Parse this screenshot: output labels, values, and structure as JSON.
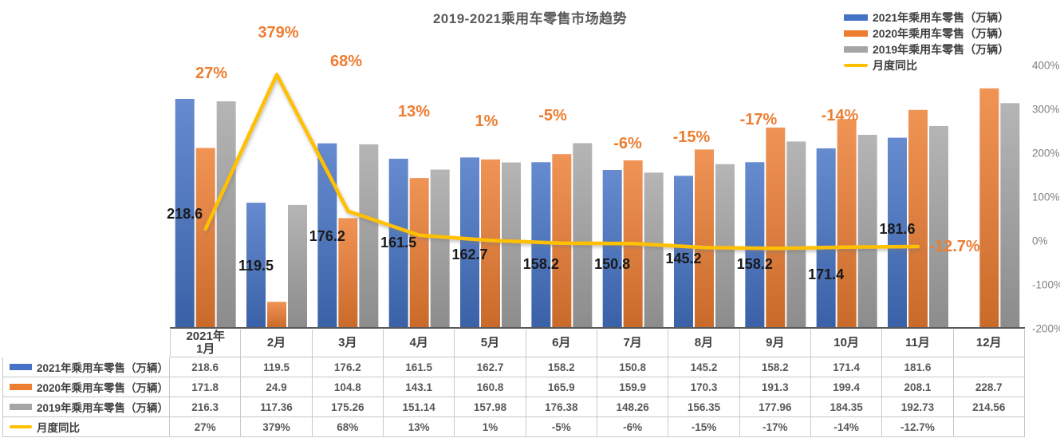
{
  "title": "2019-2021乘用车零售市场趋势",
  "colors": {
    "blue_2021": "#4472C4",
    "orange_2020": "#ED7D31",
    "gray_2019": "#A5A5A5",
    "line_yoy": "#FFC000",
    "axis_line": "#595959",
    "tick_text": "#808080",
    "pct_label": "#ED7D31",
    "value_label": "#1a1a1a"
  },
  "legend": [
    {
      "label": "2021年乘用车零售（万辆）",
      "type": "bar",
      "color": "#4472C4"
    },
    {
      "label": "2020年乘用车零售（万辆）",
      "type": "bar",
      "color": "#ED7D31"
    },
    {
      "label": "2019年乘用车零售（万辆）",
      "type": "bar",
      "color": "#A5A5A5"
    },
    {
      "label": "月度同比",
      "type": "line",
      "color": "#FFC000"
    }
  ],
  "chart_data": {
    "type": "bar+line",
    "title": "2019-2021乘用车零售市场趋势",
    "categories": [
      "2021年1月",
      "2月",
      "3月",
      "4月",
      "5月",
      "6月",
      "7月",
      "8月",
      "9月",
      "10月",
      "11月",
      "12月"
    ],
    "series": [
      {
        "name": "2021年乘用车零售（万辆）",
        "type": "bar",
        "color": "#4472C4",
        "values": [
          218.6,
          119.5,
          176.2,
          161.5,
          162.7,
          158.2,
          150.8,
          145.2,
          158.2,
          171.4,
          181.6,
          null
        ]
      },
      {
        "name": "2020年乘用车零售（万辆）",
        "type": "bar",
        "color": "#ED7D31",
        "values": [
          171.8,
          24.9,
          104.8,
          143.1,
          160.8,
          165.9,
          159.9,
          170.3,
          191.3,
          199.4,
          208.1,
          228.7
        ]
      },
      {
        "name": "2019年乘用车零售（万辆）",
        "type": "bar",
        "color": "#A5A5A5",
        "values": [
          216.3,
          117.36,
          175.26,
          151.14,
          157.98,
          176.38,
          148.26,
          156.35,
          177.96,
          184.35,
          192.73,
          214.56
        ]
      },
      {
        "name": "月度同比",
        "type": "line",
        "color": "#FFC000",
        "axis": "right-percent",
        "values": [
          27,
          379,
          68,
          13,
          1,
          -5,
          -6,
          -15,
          -17,
          -14,
          -12.7,
          null
        ]
      }
    ],
    "bar_value_labels": [
      "218.6",
      "119.5",
      "176.2",
      "161.5",
      "162.7",
      "158.2",
      "150.8",
      "145.2",
      "158.2",
      "171.4",
      "181.6"
    ],
    "line_point_labels": [
      "27%",
      "379%",
      "68%",
      "13%",
      "1%",
      "-5%",
      "-6%",
      "-15%",
      "-17%",
      "-14%",
      "-12.7%"
    ],
    "right_axis_ticks": [
      "400%",
      "300%",
      "200%",
      "100%",
      "0%",
      "-100%",
      "-200%"
    ],
    "right_axis_range": [
      -200,
      400
    ],
    "left_axis_hidden": true,
    "left_axis_range": [
      0,
      250
    ],
    "grid": false,
    "legend_position": "top-right"
  },
  "table": {
    "columns": [
      "2021年\n1月",
      "2月",
      "3月",
      "4月",
      "5月",
      "6月",
      "7月",
      "8月",
      "9月",
      "10月",
      "11月",
      "12月"
    ],
    "rows": [
      {
        "label": "2021年乘用车零售（万辆）",
        "swatch": "#4472C4",
        "swatch_type": "bar",
        "values": [
          "218.6",
          "119.5",
          "176.2",
          "161.5",
          "162.7",
          "158.2",
          "150.8",
          "145.2",
          "158.2",
          "171.4",
          "181.6",
          ""
        ]
      },
      {
        "label": "2020年乘用车零售（万辆）",
        "swatch": "#ED7D31",
        "swatch_type": "bar",
        "values": [
          "171.8",
          "24.9",
          "104.8",
          "143.1",
          "160.8",
          "165.9",
          "159.9",
          "170.3",
          "191.3",
          "199.4",
          "208.1",
          "228.7"
        ]
      },
      {
        "label": "2019年乘用车零售（万辆）",
        "swatch": "#A5A5A5",
        "swatch_type": "bar",
        "values": [
          "216.3",
          "117.36",
          "175.26",
          "151.14",
          "157.98",
          "176.38",
          "148.26",
          "156.35",
          "177.96",
          "184.35",
          "192.73",
          "214.56"
        ]
      },
      {
        "label": "月度同比",
        "swatch": "#FFC000",
        "swatch_type": "line",
        "values": [
          "27%",
          "379%",
          "68%",
          "13%",
          "1%",
          "-5%",
          "-6%",
          "-15%",
          "-17%",
          "-14%",
          "-12.7%",
          ""
        ]
      }
    ]
  }
}
